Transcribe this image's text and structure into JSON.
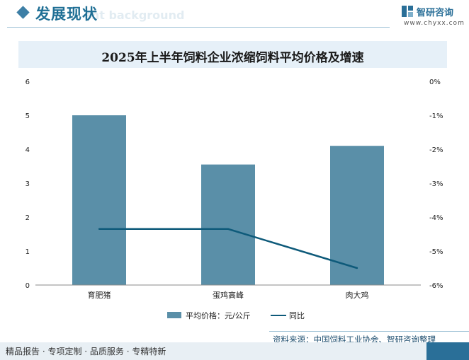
{
  "header": {
    "title": "发展现状",
    "watermark": "ent background"
  },
  "brand": {
    "name": "智研咨询",
    "url": "www.chyxx.com"
  },
  "chart_data": {
    "type": "bar",
    "title": "2025年上半年饲料企业浓缩饲料平均价格及增速",
    "categories": [
      "育肥猪",
      "蛋鸡高峰",
      "肉大鸡"
    ],
    "series": [
      {
        "name": "平均价格：元/公斤",
        "type": "bar",
        "axis": "left",
        "values": [
          5.0,
          3.55,
          4.1
        ],
        "color": "#5a8fa8"
      },
      {
        "name": "同比",
        "type": "line",
        "axis": "right",
        "values": [
          -4.35,
          -4.35,
          -5.5
        ],
        "color": "#0e5a7a"
      }
    ],
    "ylim_left": [
      0,
      6
    ],
    "yticks_left": [
      "0",
      "1",
      "2",
      "3",
      "4",
      "5",
      "6"
    ],
    "ylim_right": [
      -6,
      0
    ],
    "yticks_right": [
      "-6%",
      "-5%",
      "-4%",
      "-3%",
      "-2%",
      "-1%",
      "0%"
    ],
    "grid": false,
    "legend_placement": "bottom"
  },
  "footer": {
    "source": "资料来源：中国饲料工业协会、智研咨询整理",
    "slogan": "精品报告 · 专项定制 · 品质服务 · 专精特新"
  }
}
